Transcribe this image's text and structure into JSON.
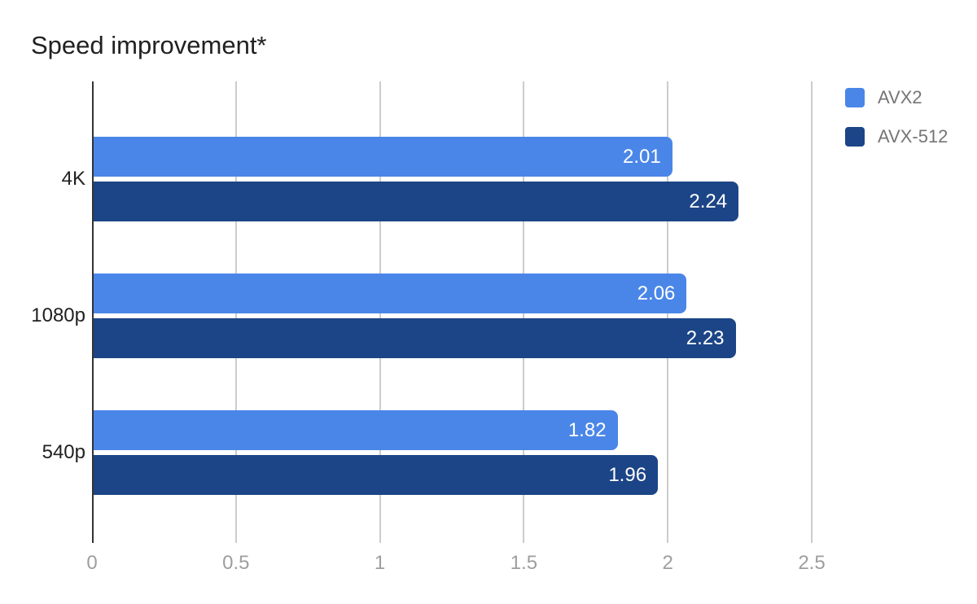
{
  "chart_data": {
    "type": "bar",
    "orientation": "horizontal",
    "title": "Speed improvement*",
    "categories": [
      "4K",
      "1080p",
      "540p"
    ],
    "series": [
      {
        "name": "AVX2",
        "color": "#4a86e8",
        "values": [
          2.01,
          2.06,
          1.82
        ]
      },
      {
        "name": "AVX-512",
        "color": "#1c4587",
        "values": [
          2.24,
          2.23,
          1.96
        ]
      }
    ],
    "x_ticks": [
      0,
      0.5,
      1,
      1.5,
      2,
      2.5
    ],
    "x_tick_labels": [
      "0",
      "0.5",
      "1",
      "1.5",
      "2",
      "2.5"
    ],
    "xlim": [
      0,
      2.54
    ],
    "grid": true,
    "legend_position": "right",
    "value_labels_shown": true
  },
  "colors": {
    "background": "#ffffff",
    "gridline": "#cccccc",
    "axis_line": "#333333",
    "title_text": "#212121",
    "category_text": "#212121",
    "tick_text": "#9e9e9e",
    "legend_text": "#757575",
    "value_text": "#ffffff"
  }
}
